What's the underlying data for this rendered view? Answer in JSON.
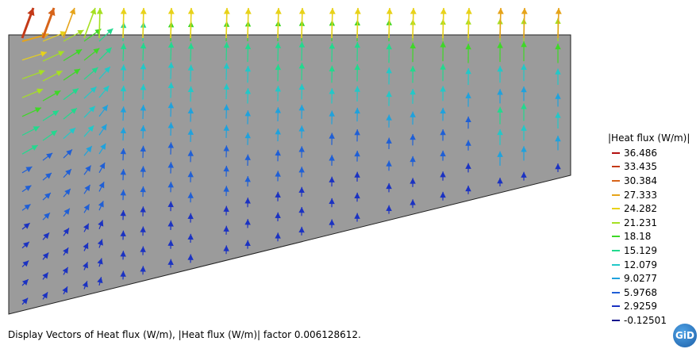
{
  "legend": {
    "title": "|Heat flux (W/m)|",
    "entries": [
      {
        "label": "36.486",
        "color": "#b30f0f"
      },
      {
        "label": "33.435",
        "color": "#c43a18"
      },
      {
        "label": "30.384",
        "color": "#d7641a"
      },
      {
        "label": "27.333",
        "color": "#e6a41a"
      },
      {
        "label": "24.282",
        "color": "#e8d21a"
      },
      {
        "label": "21.231",
        "color": "#a6e022"
      },
      {
        "label": "18.18",
        "color": "#3ed826"
      },
      {
        "label": "15.129",
        "color": "#22d98e"
      },
      {
        "label": "12.079",
        "color": "#22c8c8"
      },
      {
        "label": "9.0277",
        "color": "#1fa2dd"
      },
      {
        "label": "5.9768",
        "color": "#1f5fd6"
      },
      {
        "label": "2.9259",
        "color": "#1b32c2"
      },
      {
        "label": "-0.12501",
        "color": "#14148c"
      }
    ]
  },
  "caption": "Display Vectors of Heat flux (W/m), |Heat flux (W/m)| factor 0.006128612.",
  "logo_text": "GiD",
  "colors": {
    "domain_fill": "#9b9b9b",
    "domain_stroke": "#222222"
  }
}
